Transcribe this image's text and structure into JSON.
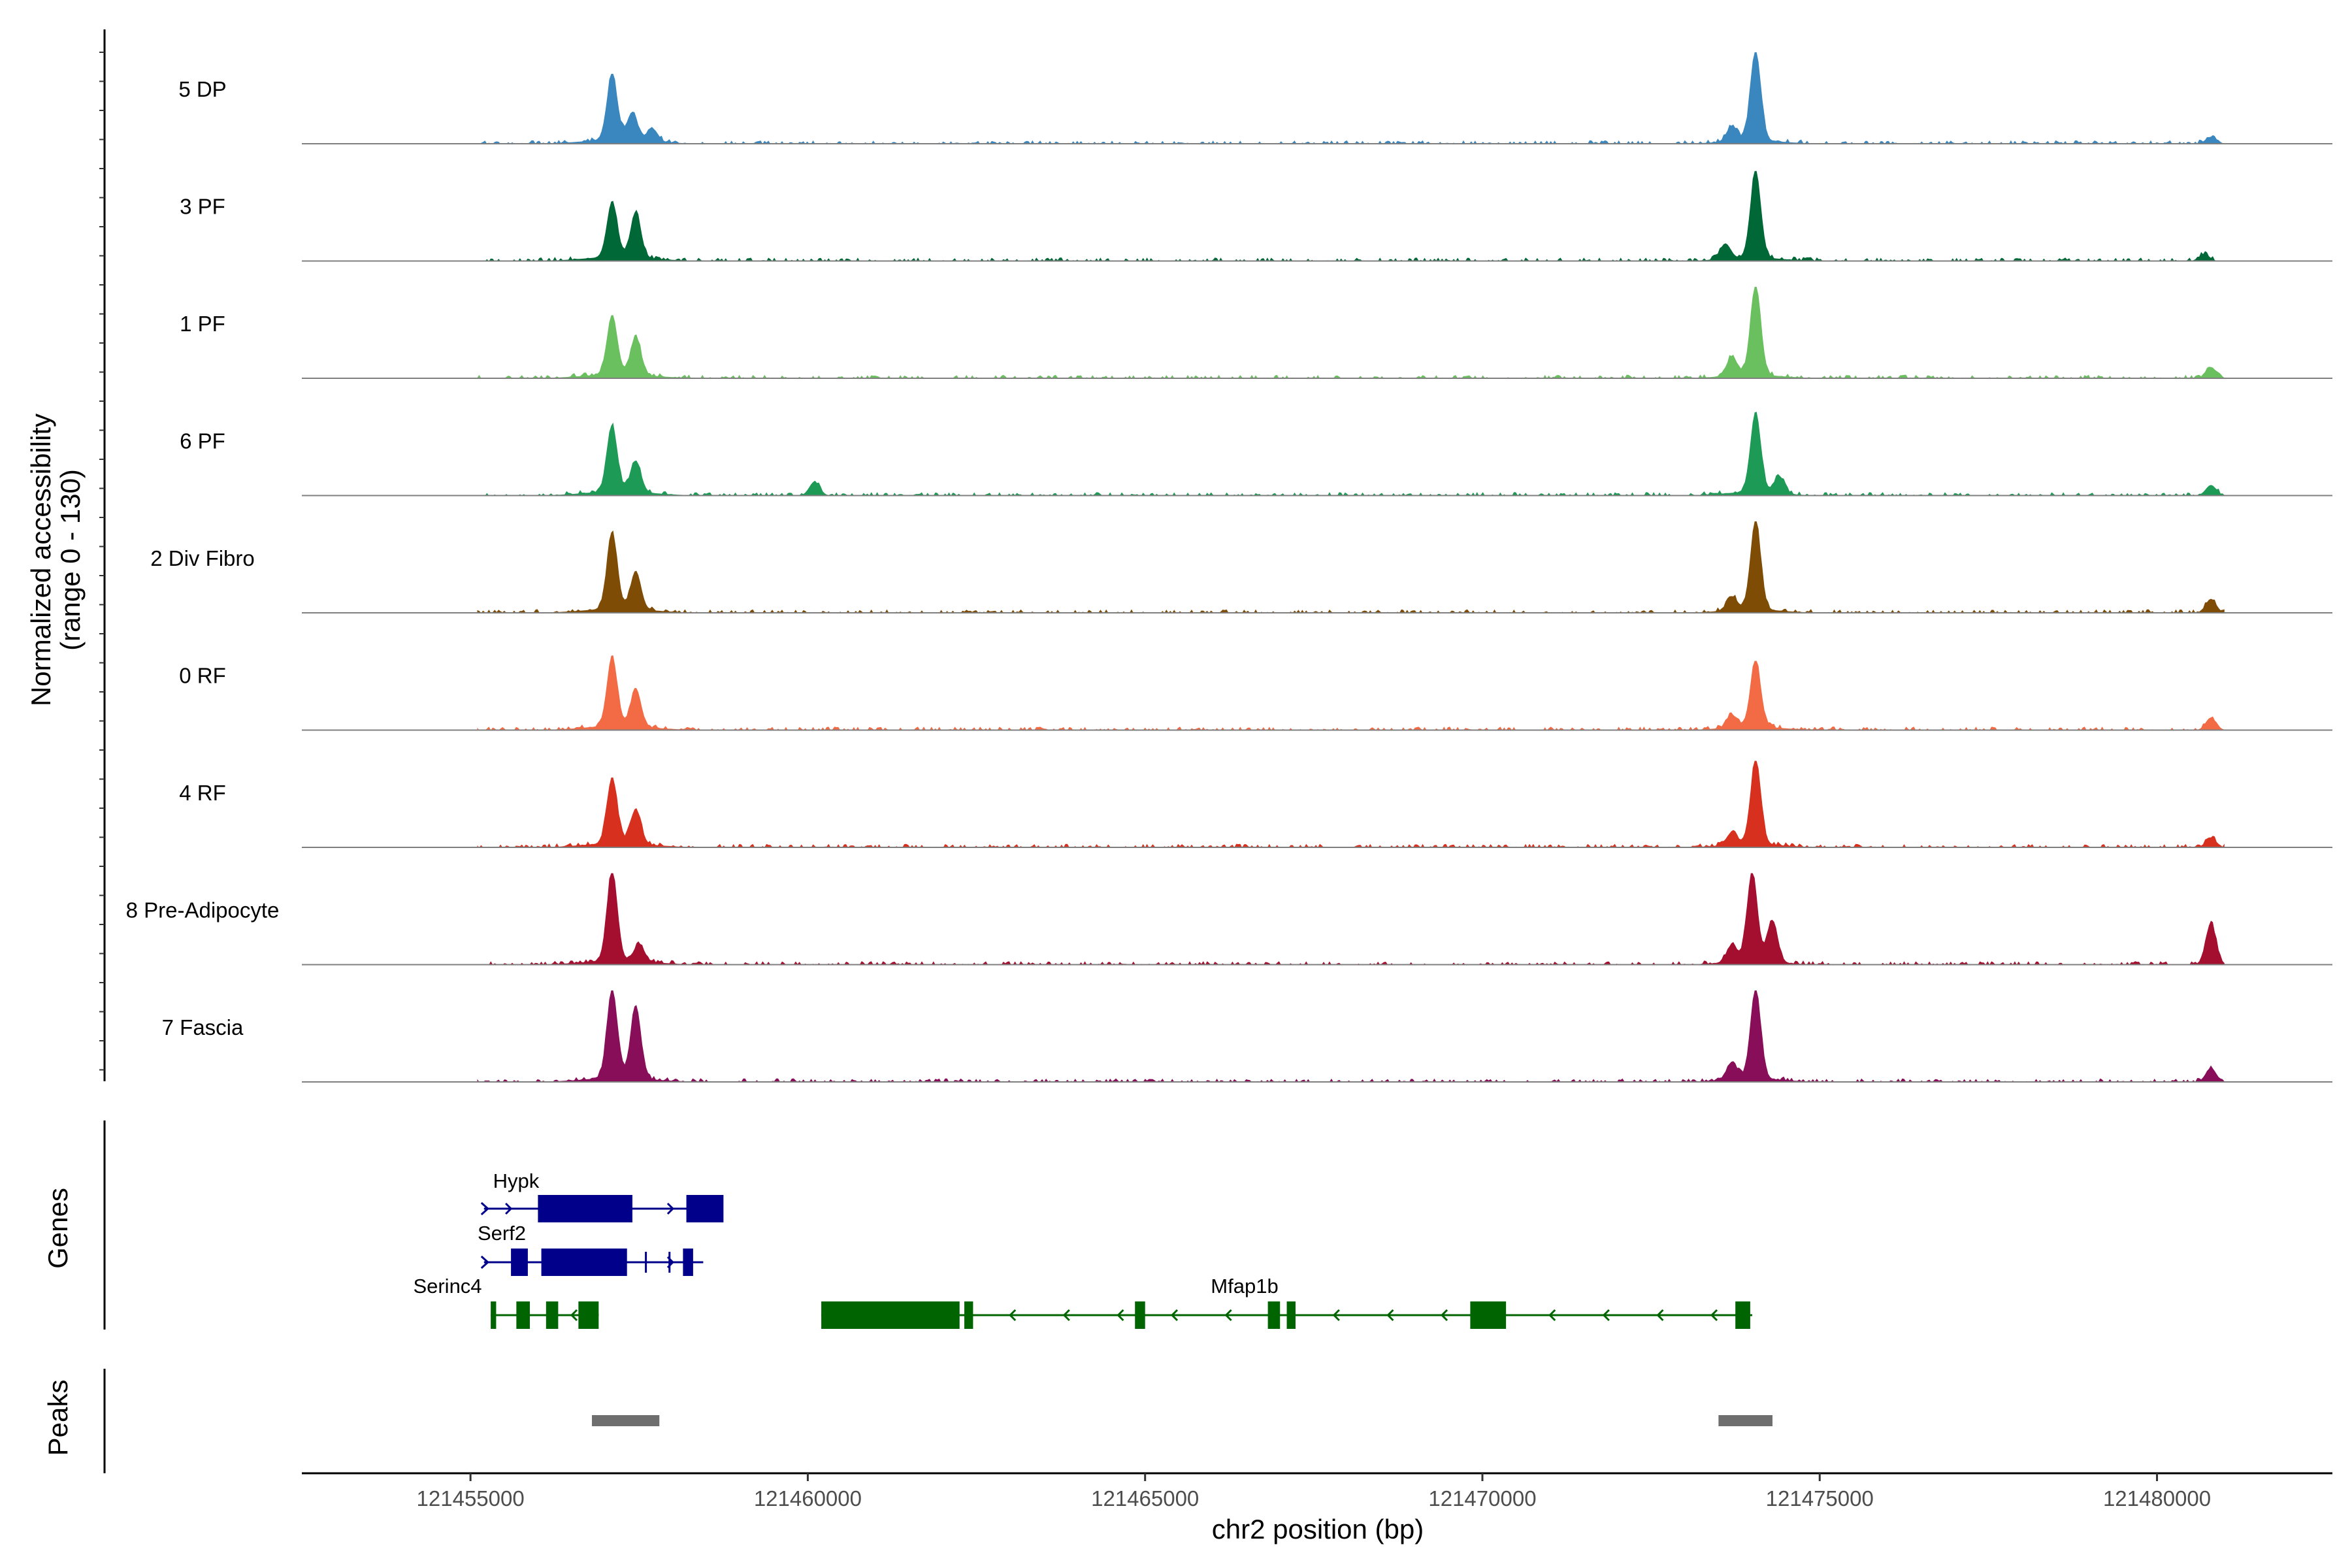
{
  "chart_data": {
    "type": "area",
    "title": "",
    "xlabel": "chr2 position (bp)",
    "ylabel": "Normalized accessibility",
    "ylabel_range": "(range 0 - 130)",
    "ylim": [
      0,
      130
    ],
    "xlim": [
      121452500,
      121482600
    ],
    "xticks": [
      121455000,
      121460000,
      121465000,
      121470000,
      121475000,
      121480000
    ],
    "xtick_labels": [
      "121455000",
      "121460000",
      "121465000",
      "121470000",
      "121475000",
      "121480000"
    ],
    "genes_panel_label": "Genes",
    "peaks_panel_label": "Peaks",
    "tracks": [
      {
        "name": "5 DP",
        "color": "#3a87c0",
        "peaks": [
          [
            121457100,
            95
          ],
          [
            121457400,
            40
          ],
          [
            121457700,
            18
          ],
          [
            121474050,
            130
          ],
          [
            121473700,
            22
          ],
          [
            121480800,
            10
          ]
        ]
      },
      {
        "name": "3 PF",
        "color": "#006837",
        "peaks": [
          [
            121457100,
            80
          ],
          [
            121457450,
            65
          ],
          [
            121474050,
            125
          ],
          [
            121473600,
            22
          ],
          [
            121480700,
            10
          ]
        ]
      },
      {
        "name": "1 PF",
        "color": "#6abf5e",
        "peaks": [
          [
            121457100,
            85
          ],
          [
            121457450,
            55
          ],
          [
            121474050,
            130
          ],
          [
            121473700,
            28
          ],
          [
            121480800,
            16
          ]
        ]
      },
      {
        "name": "6 PF",
        "color": "#1d9a55",
        "peaks": [
          [
            121457100,
            95
          ],
          [
            121457450,
            45
          ],
          [
            121460100,
            20
          ],
          [
            121474050,
            115
          ],
          [
            121474400,
            25
          ],
          [
            121480800,
            15
          ]
        ]
      },
      {
        "name": "2 Div Fibro",
        "color": "#7f4c06",
        "peaks": [
          [
            121457100,
            110
          ],
          [
            121457450,
            55
          ],
          [
            121474050,
            128
          ],
          [
            121473700,
            20
          ],
          [
            121480800,
            20
          ]
        ]
      },
      {
        "name": "0 RF",
        "color": "#f26b45",
        "peaks": [
          [
            121457100,
            100
          ],
          [
            121457450,
            55
          ],
          [
            121474050,
            95
          ],
          [
            121473700,
            18
          ],
          [
            121480800,
            18
          ]
        ]
      },
      {
        "name": "4 RF",
        "color": "#d7301f",
        "peaks": [
          [
            121457100,
            95
          ],
          [
            121457450,
            50
          ],
          [
            121474050,
            120
          ],
          [
            121473700,
            18
          ],
          [
            121480800,
            14
          ]
        ]
      },
      {
        "name": "8 Pre-Adipocyte",
        "color": "#a50f2f",
        "peaks": [
          [
            121457100,
            130
          ],
          [
            121457500,
            25
          ],
          [
            121474000,
            130
          ],
          [
            121474300,
            60
          ],
          [
            121473700,
            25
          ],
          [
            121480800,
            60
          ]
        ]
      },
      {
        "name": "7 Fascia",
        "color": "#880e59",
        "peaks": [
          [
            121457100,
            130
          ],
          [
            121457450,
            105
          ],
          [
            121474050,
            130
          ],
          [
            121473700,
            25
          ],
          [
            121480800,
            20
          ]
        ]
      }
    ],
    "genes": [
      {
        "name": "Hypk",
        "strand": "+",
        "color": "#00008b",
        "start": 121455200,
        "end": 121458700,
        "exons": [
          [
            121456000,
            121457400
          ],
          [
            121458200,
            121458750
          ]
        ]
      },
      {
        "name": "Serf2",
        "strand": "+",
        "color": "#00008b",
        "start": 121455200,
        "end": 121458450,
        "exons": [
          [
            121455600,
            121455850
          ],
          [
            121456050,
            121457320
          ],
          [
            121458150,
            121458300
          ]
        ],
        "thin_ticks": [
          121457600,
          121457950
        ]
      },
      {
        "name": "Serinc4",
        "strand": "-",
        "color": "#006400",
        "start": 121455300,
        "end": 121456900,
        "exons": [
          [
            121455300,
            121455380
          ],
          [
            121455680,
            121455880
          ],
          [
            121456120,
            121456300
          ],
          [
            121456600,
            121456900
          ]
        ]
      },
      {
        "name": "Mfap1b",
        "strand": "-",
        "color": "#006400",
        "start": 121460200,
        "end": 121474000,
        "exons": [
          [
            121460200,
            121462250
          ],
          [
            121462320,
            121462450
          ],
          [
            121464850,
            121465000
          ],
          [
            121466820,
            121467000
          ],
          [
            121467100,
            121467230
          ],
          [
            121469820,
            121470350
          ],
          [
            121473750,
            121473970
          ]
        ]
      }
    ],
    "peak_regions": [
      [
        121456800,
        121457800
      ],
      [
        121473500,
        121474300
      ]
    ]
  }
}
